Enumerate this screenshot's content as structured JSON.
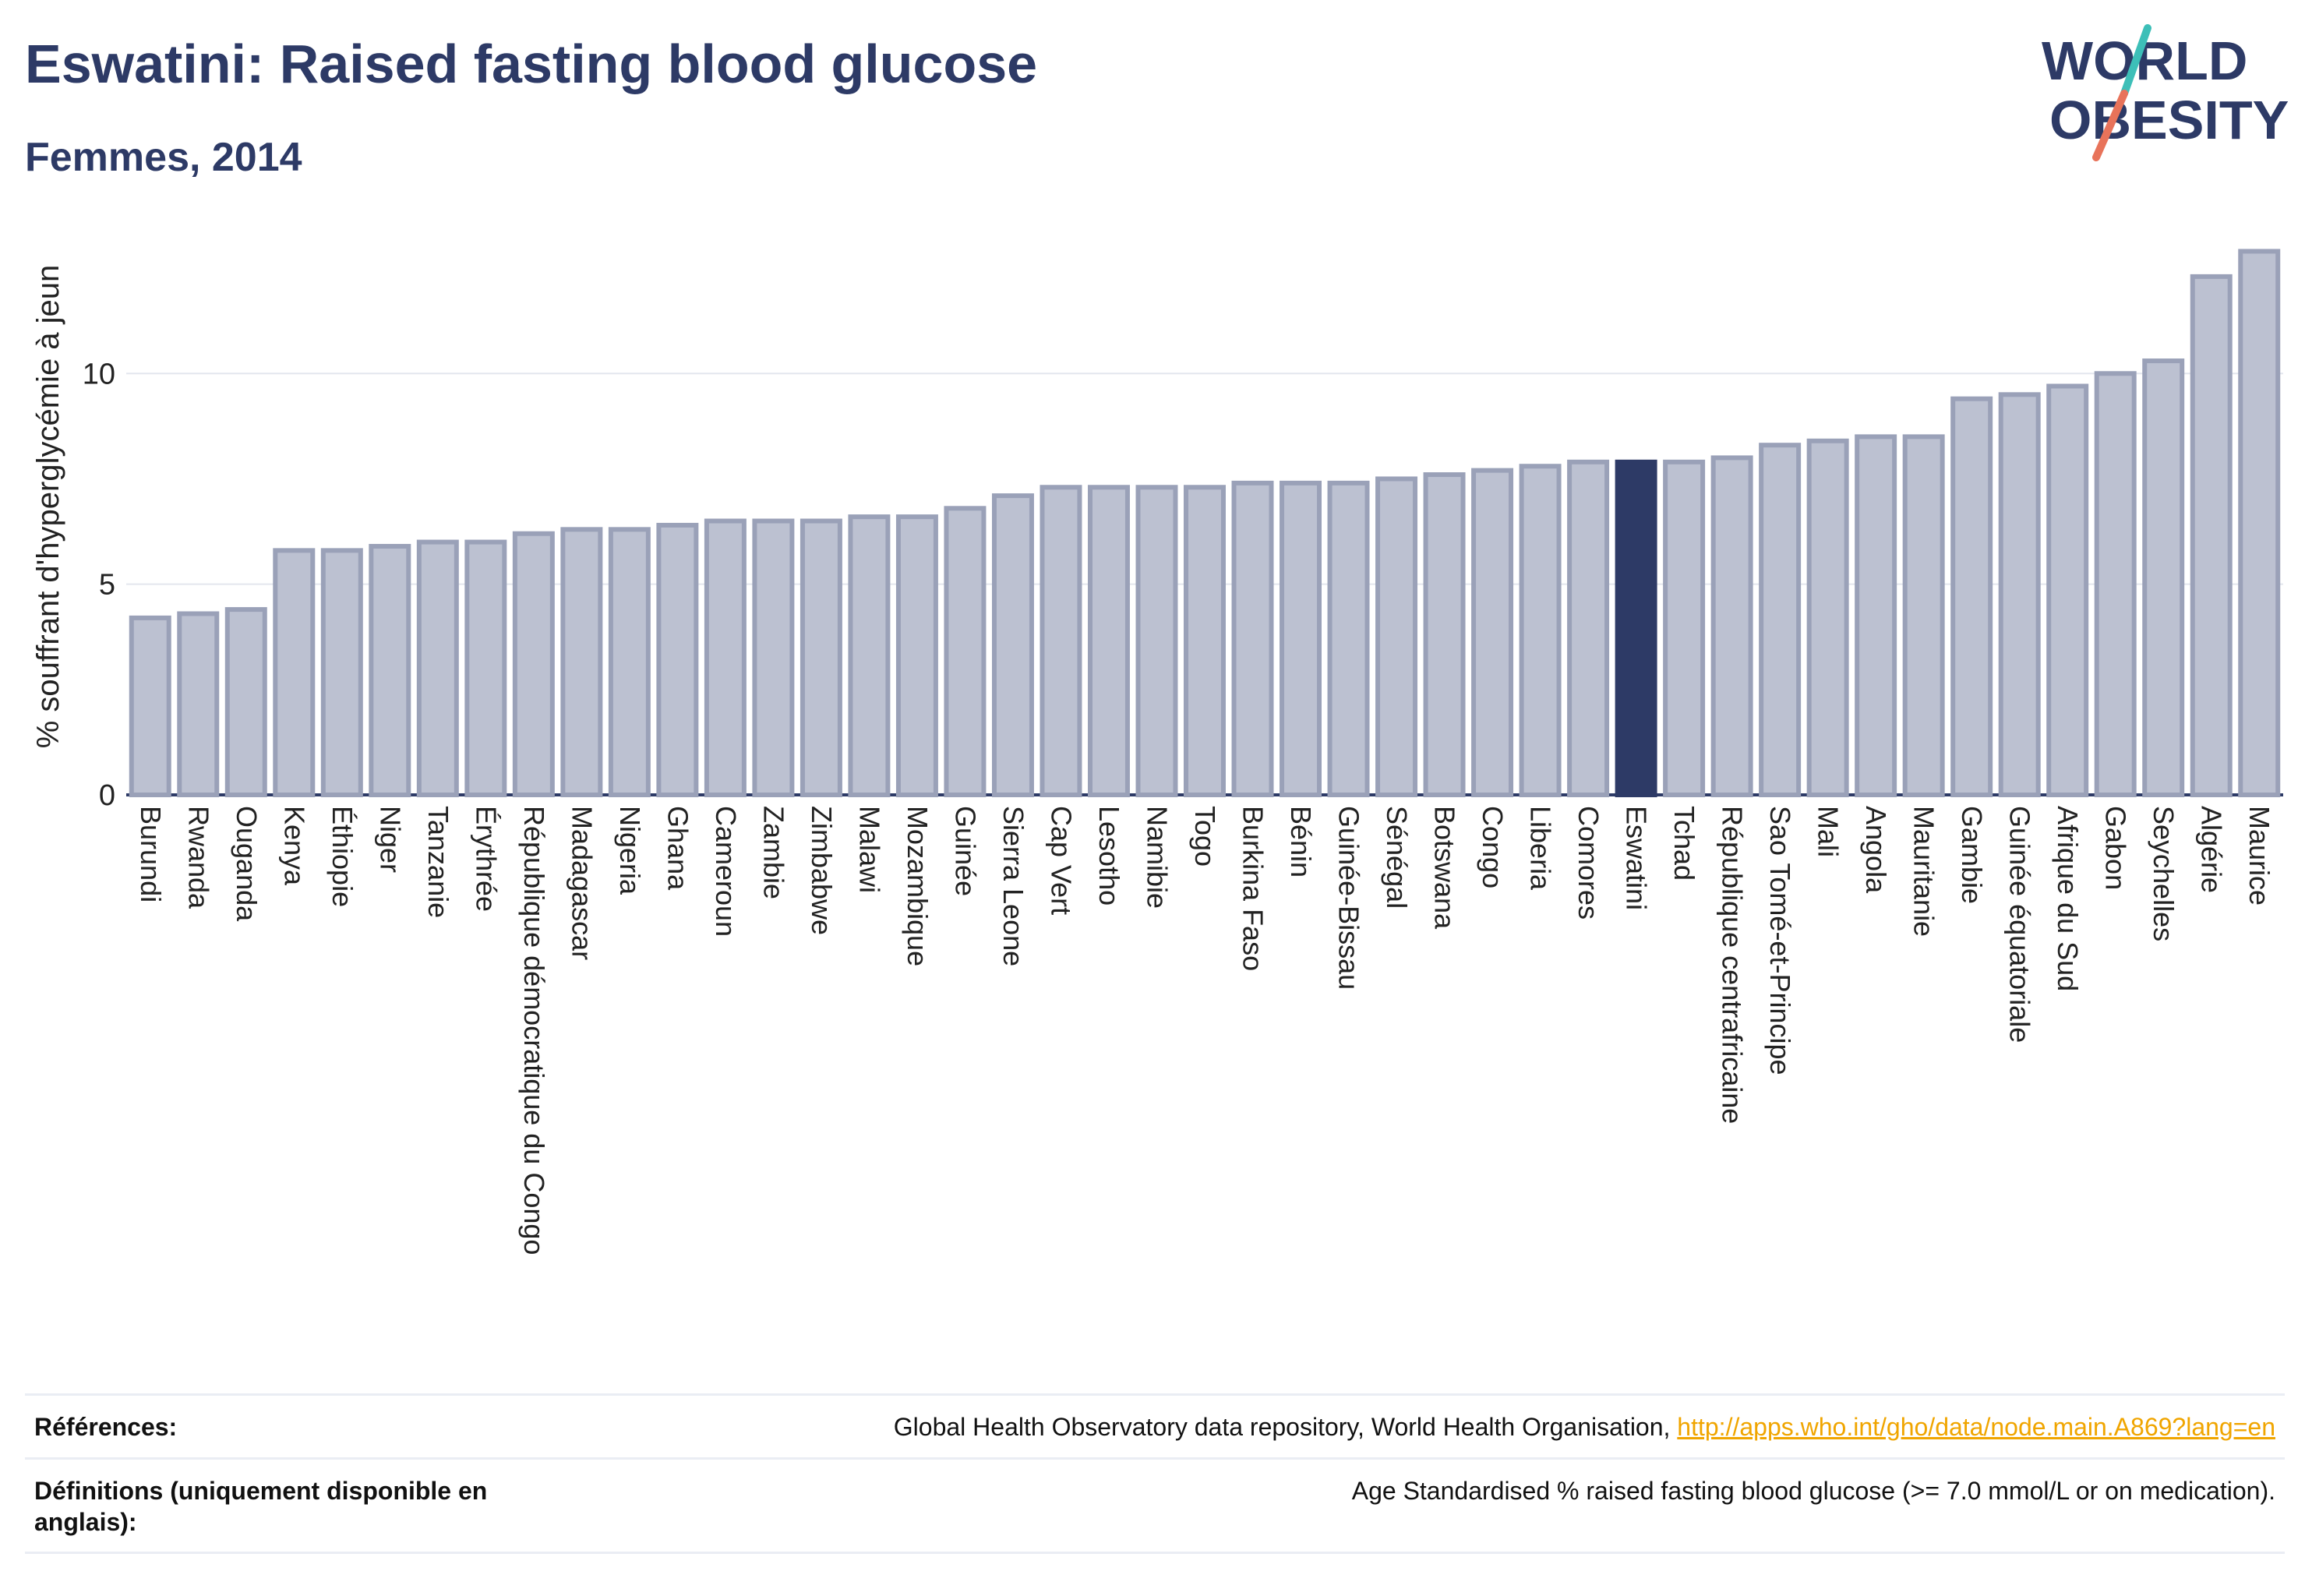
{
  "title": "Eswatini: Raised fasting blood glucose",
  "subtitle": "Femmes, 2014",
  "logo": {
    "line1": "WORLD",
    "line2": "OBESITY",
    "brand_color": "#2d3a66",
    "accent_teal": "#3dbfb8",
    "accent_red": "#e8735a"
  },
  "chart_data": {
    "type": "bar",
    "ylabel": "% souffrant d'hyperglycémie à jeun",
    "ylim": [
      0,
      13.5
    ],
    "yticks": [
      0,
      5,
      10
    ],
    "grid": true,
    "highlight": "Eswatini",
    "bar_color": "#bcc1d1",
    "bar_edge_color": "#9aa1b8",
    "highlight_color": "#2d3a66",
    "categories": [
      "Burundi",
      "Rwanda",
      "Ouganda",
      "Kenya",
      "Éthiopie",
      "Niger",
      "Tanzanie",
      "Érythrée",
      "République démocratique du Congo",
      "Madagascar",
      "Nigeria",
      "Ghana",
      "Cameroun",
      "Zambie",
      "Zimbabwe",
      "Malawi",
      "Mozambique",
      "Guinée",
      "Sierra Leone",
      "Cap Vert",
      "Lesotho",
      "Namibie",
      "Togo",
      "Burkina Faso",
      "Bénin",
      "Guinée-Bissau",
      "Sénégal",
      "Botswana",
      "Congo",
      "Liberia",
      "Comores",
      "Eswatini",
      "Tchad",
      "République centrafricaine",
      "Sao Tomé-et-Principe",
      "Mali",
      "Angola",
      "Mauritanie",
      "Gambie",
      "Guinée équatoriale",
      "Afrique du Sud",
      "Gabon",
      "Seychelles",
      "Algérie",
      "Maurice"
    ],
    "values": [
      4.2,
      4.3,
      4.4,
      5.8,
      5.8,
      5.9,
      6.0,
      6.0,
      6.2,
      6.3,
      6.3,
      6.4,
      6.5,
      6.5,
      6.5,
      6.6,
      6.6,
      6.8,
      7.1,
      7.3,
      7.3,
      7.3,
      7.3,
      7.4,
      7.4,
      7.4,
      7.5,
      7.6,
      7.7,
      7.8,
      7.9,
      7.9,
      7.9,
      8.0,
      8.3,
      8.4,
      8.5,
      8.5,
      9.4,
      9.5,
      9.7,
      10.0,
      10.3,
      12.3,
      12.9
    ]
  },
  "footer": {
    "references_label": "Références:",
    "references_text": "Global Health Observatory data repository, World Health Organisation, ",
    "references_link": "http://apps.who.int/gho/data/node.main.A869?lang=en",
    "definitions_label": "Définitions (uniquement disponible en anglais):",
    "definitions_text": "Age Standardised % raised fasting blood glucose (>= 7.0 mmol/L or on medication)."
  }
}
